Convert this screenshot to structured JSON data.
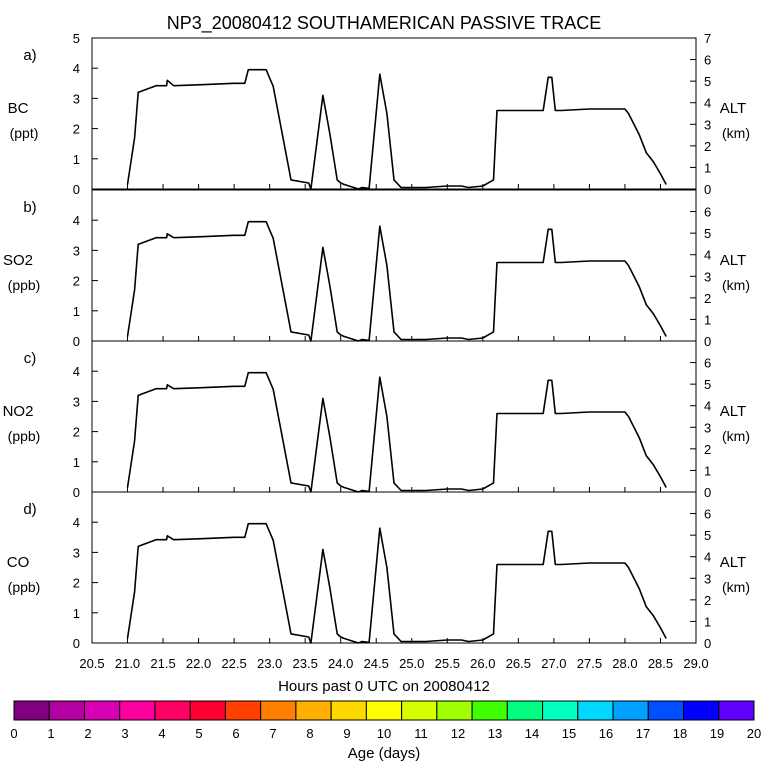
{
  "title": "NP3_20080412 SOUTHAMERICAN PASSIVE TRACE",
  "xlabel": "Hours past 0 UTC on 20080412",
  "x_ticks": [
    "20.5",
    "21.0",
    "21.5",
    "22.0",
    "22.5",
    "23.0",
    "23.5",
    "24.0",
    "24.5",
    "25.0",
    "25.5",
    "26.0",
    "26.5",
    "27.0",
    "27.5",
    "28.0",
    "28.5",
    "29.0"
  ],
  "colorbar": {
    "label": "Age (days)",
    "ticks": [
      "0",
      "1",
      "2",
      "3",
      "4",
      "5",
      "6",
      "7",
      "8",
      "9",
      "10",
      "11",
      "12",
      "13",
      "14",
      "15",
      "16",
      "17",
      "18",
      "19",
      "20"
    ],
    "colors": [
      "#800080",
      "#b400a0",
      "#d800b4",
      "#ff00a0",
      "#ff0064",
      "#ff0030",
      "#ff4000",
      "#ff8000",
      "#ffb000",
      "#ffd800",
      "#ffff00",
      "#d8ff00",
      "#a0ff00",
      "#40ff00",
      "#00ff80",
      "#00ffc0",
      "#00d8ff",
      "#00a0ff",
      "#0050ff",
      "#0000ff",
      "#6000ff"
    ]
  },
  "chart_data": [
    {
      "type": "line",
      "panel": "a)",
      "ylabel": "BC",
      "yunit": "(ppt)",
      "ylim": [
        0,
        5
      ],
      "y_ticks": [
        "0",
        "1",
        "2",
        "3",
        "4",
        "5"
      ],
      "y2label": "ALT",
      "y2unit": "(km)",
      "y2lim": [
        0,
        7
      ],
      "y2_ticks": [
        "0",
        "1",
        "2",
        "3",
        "4",
        "5",
        "6",
        "7"
      ],
      "xlim": [
        20.5,
        29.0
      ],
      "series": [
        {
          "x": [
            21.0,
            21.1,
            21.15,
            21.4,
            21.55,
            21.56,
            21.65,
            22.0,
            22.5,
            22.65,
            22.7,
            22.95,
            23.05,
            23.3,
            23.55,
            23.58,
            23.75,
            23.85,
            23.95,
            24.0,
            24.05,
            24.25,
            24.3,
            24.4,
            24.55,
            24.65,
            24.75,
            24.85,
            25.0,
            25.2,
            25.5,
            25.7,
            25.8,
            26.0,
            26.15,
            26.2,
            26.5,
            26.85,
            26.92,
            26.97,
            27.02,
            27.1,
            27.5,
            28.0,
            28.05,
            28.2,
            28.3,
            28.4,
            28.5,
            28.58
          ],
          "y": [
            0.15,
            1.7,
            3.2,
            3.42,
            3.42,
            3.6,
            3.42,
            3.45,
            3.5,
            3.5,
            3.95,
            3.95,
            3.4,
            0.3,
            0.2,
            0.0,
            3.1,
            1.8,
            0.3,
            0.2,
            0.15,
            0.0,
            0.05,
            0.02,
            3.8,
            2.5,
            0.3,
            0.05,
            0.05,
            0.05,
            0.1,
            0.1,
            0.05,
            0.1,
            0.3,
            2.6,
            2.6,
            2.6,
            3.7,
            3.7,
            2.6,
            2.6,
            2.65,
            2.65,
            2.5,
            1.8,
            1.2,
            0.9,
            0.5,
            0.15
          ]
        }
      ]
    },
    {
      "type": "line",
      "panel": "b)",
      "ylabel": "SO2",
      "yunit": "(ppb)",
      "ylim": [
        0,
        5
      ],
      "y_ticks": [
        "0",
        "1",
        "2",
        "3",
        "4"
      ],
      "y2label": "ALT",
      "y2unit": "(km)",
      "y2lim": [
        0,
        7
      ],
      "y2_ticks": [
        "0",
        "1",
        "2",
        "3",
        "4",
        "5",
        "6"
      ],
      "xlim": [
        20.5,
        29.0
      ],
      "series": [
        {
          "x": [
            21.0,
            21.1,
            21.15,
            21.4,
            21.55,
            21.56,
            21.65,
            22.0,
            22.5,
            22.65,
            22.7,
            22.95,
            23.05,
            23.3,
            23.55,
            23.58,
            23.75,
            23.85,
            23.95,
            24.0,
            24.05,
            24.25,
            24.3,
            24.4,
            24.55,
            24.65,
            24.75,
            24.85,
            25.0,
            25.2,
            25.5,
            25.7,
            25.8,
            26.0,
            26.15,
            26.2,
            26.5,
            26.85,
            26.92,
            26.97,
            27.02,
            27.1,
            27.5,
            28.0,
            28.05,
            28.2,
            28.3,
            28.4,
            28.5,
            28.58
          ],
          "y": [
            0.15,
            1.7,
            3.2,
            3.42,
            3.42,
            3.55,
            3.42,
            3.45,
            3.5,
            3.5,
            3.95,
            3.95,
            3.4,
            0.3,
            0.2,
            0.0,
            3.1,
            1.8,
            0.3,
            0.2,
            0.15,
            0.0,
            0.05,
            0.02,
            3.8,
            2.5,
            0.3,
            0.05,
            0.05,
            0.05,
            0.1,
            0.1,
            0.05,
            0.1,
            0.3,
            2.6,
            2.6,
            2.6,
            3.7,
            3.7,
            2.6,
            2.6,
            2.65,
            2.65,
            2.5,
            1.8,
            1.2,
            0.9,
            0.5,
            0.15
          ]
        }
      ]
    },
    {
      "type": "line",
      "panel": "c)",
      "ylabel": "NO2",
      "yunit": "(ppb)",
      "ylim": [
        0,
        5
      ],
      "y_ticks": [
        "0",
        "1",
        "2",
        "3",
        "4"
      ],
      "y2label": "ALT",
      "y2unit": "(km)",
      "y2lim": [
        0,
        7
      ],
      "y2_ticks": [
        "0",
        "1",
        "2",
        "3",
        "4",
        "5",
        "6"
      ],
      "xlim": [
        20.5,
        29.0
      ],
      "series": [
        {
          "x": [
            21.0,
            21.1,
            21.15,
            21.4,
            21.55,
            21.56,
            21.65,
            22.0,
            22.5,
            22.65,
            22.7,
            22.95,
            23.05,
            23.3,
            23.55,
            23.58,
            23.75,
            23.85,
            23.95,
            24.0,
            24.05,
            24.25,
            24.3,
            24.4,
            24.55,
            24.65,
            24.75,
            24.85,
            25.0,
            25.2,
            25.5,
            25.7,
            25.8,
            26.0,
            26.15,
            26.2,
            26.5,
            26.85,
            26.92,
            26.97,
            27.02,
            27.1,
            27.5,
            28.0,
            28.05,
            28.2,
            28.3,
            28.4,
            28.5,
            28.58
          ],
          "y": [
            0.15,
            1.7,
            3.2,
            3.42,
            3.42,
            3.55,
            3.42,
            3.45,
            3.5,
            3.5,
            3.95,
            3.95,
            3.4,
            0.3,
            0.2,
            0.0,
            3.1,
            1.8,
            0.3,
            0.2,
            0.15,
            0.0,
            0.05,
            0.02,
            3.8,
            2.5,
            0.3,
            0.05,
            0.05,
            0.05,
            0.1,
            0.1,
            0.05,
            0.1,
            0.3,
            2.6,
            2.6,
            2.6,
            3.7,
            3.7,
            2.6,
            2.6,
            2.65,
            2.65,
            2.5,
            1.8,
            1.2,
            0.9,
            0.5,
            0.15
          ]
        }
      ]
    },
    {
      "type": "line",
      "panel": "d)",
      "ylabel": "CO",
      "yunit": "(ppb)",
      "ylim": [
        0,
        5
      ],
      "y_ticks": [
        "0",
        "1",
        "2",
        "3",
        "4"
      ],
      "y2label": "ALT",
      "y2unit": "(km)",
      "y2lim": [
        0,
        7
      ],
      "y2_ticks": [
        "0",
        "1",
        "2",
        "3",
        "4",
        "5",
        "6"
      ],
      "xlim": [
        20.5,
        29.0
      ],
      "series": [
        {
          "x": [
            21.0,
            21.1,
            21.15,
            21.4,
            21.55,
            21.56,
            21.65,
            22.0,
            22.5,
            22.65,
            22.7,
            22.95,
            23.05,
            23.3,
            23.55,
            23.58,
            23.75,
            23.85,
            23.95,
            24.0,
            24.05,
            24.25,
            24.3,
            24.4,
            24.55,
            24.65,
            24.75,
            24.85,
            25.0,
            25.2,
            25.5,
            25.7,
            25.8,
            26.0,
            26.15,
            26.2,
            26.5,
            26.85,
            26.92,
            26.97,
            27.02,
            27.1,
            27.5,
            28.0,
            28.05,
            28.2,
            28.3,
            28.4,
            28.5,
            28.58
          ],
          "y": [
            0.15,
            1.7,
            3.2,
            3.42,
            3.42,
            3.55,
            3.42,
            3.45,
            3.5,
            3.5,
            3.95,
            3.95,
            3.4,
            0.3,
            0.2,
            0.0,
            3.1,
            1.8,
            0.3,
            0.2,
            0.15,
            0.0,
            0.05,
            0.02,
            3.8,
            2.5,
            0.3,
            0.05,
            0.05,
            0.05,
            0.1,
            0.1,
            0.05,
            0.1,
            0.3,
            2.6,
            2.6,
            2.6,
            3.7,
            3.7,
            2.6,
            2.6,
            2.65,
            2.65,
            2.5,
            1.8,
            1.2,
            0.9,
            0.5,
            0.15
          ]
        }
      ]
    }
  ]
}
